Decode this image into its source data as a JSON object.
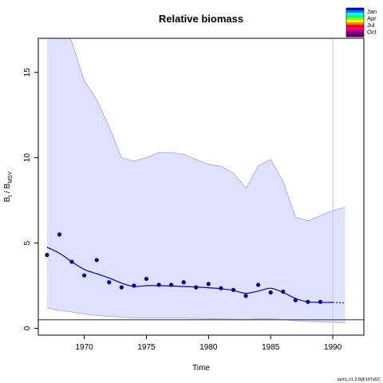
{
  "chart_data": {
    "type": "line",
    "title": "Relative biomass",
    "xlabel": "Time",
    "ylabel": {
      "base": "B",
      "sub_t": "t",
      "slash": " / ",
      "base2": "B",
      "sub_msy": "MSY"
    },
    "xlim": [
      1966.3,
      1992.5
    ],
    "ylim": [
      -0.4,
      17.0
    ],
    "x_ticks": [
      1970,
      1975,
      1980,
      1985,
      1990
    ],
    "y_ticks": [
      0,
      5,
      10,
      15
    ],
    "grid": false,
    "reference_line_y": 0.5,
    "vertical_line_x": 1990,
    "observations": {
      "x": [
        1967,
        1968,
        1969,
        1970,
        1971,
        1972,
        1973,
        1974,
        1975,
        1976,
        1977,
        1978,
        1979,
        1980,
        1981,
        1982,
        1983,
        1984,
        1985,
        1986,
        1987,
        1988,
        1989
      ],
      "y": [
        4.3,
        5.5,
        3.9,
        3.1,
        4.0,
        2.7,
        2.4,
        2.5,
        2.9,
        2.55,
        2.55,
        2.7,
        2.4,
        2.6,
        2.35,
        2.25,
        1.9,
        2.55,
        2.1,
        2.15,
        1.65,
        1.55,
        1.55
      ]
    },
    "estimate": {
      "x": [
        1967,
        1968,
        1969,
        1970,
        1971,
        1972,
        1973,
        1974,
        1975,
        1976,
        1977,
        1978,
        1979,
        1980,
        1981,
        1982,
        1983,
        1984,
        1985,
        1986,
        1987,
        1988,
        1989,
        1990
      ],
      "y": [
        4.75,
        4.4,
        3.9,
        3.45,
        3.2,
        2.95,
        2.65,
        2.45,
        2.5,
        2.5,
        2.48,
        2.45,
        2.42,
        2.38,
        2.32,
        2.22,
        2.05,
        2.18,
        2.35,
        2.1,
        1.75,
        1.55,
        1.52,
        1.52
      ]
    },
    "forecast": {
      "x": [
        1990,
        1991
      ],
      "y": [
        1.52,
        1.48
      ]
    },
    "confidence_band": {
      "x": [
        1967,
        1968,
        1969,
        1970,
        1971,
        1972,
        1973,
        1974,
        1975,
        1976,
        1977,
        1978,
        1979,
        1980,
        1981,
        1982,
        1983,
        1984,
        1985,
        1986,
        1987,
        1988,
        1989,
        1990,
        1991
      ],
      "upper": [
        18.0,
        18.0,
        16.8,
        14.5,
        13.4,
        11.8,
        10.0,
        9.8,
        10.0,
        10.3,
        10.3,
        10.2,
        9.9,
        9.6,
        9.5,
        9.1,
        8.2,
        9.5,
        9.9,
        8.6,
        6.5,
        6.3,
        6.6,
        6.9,
        7.1
      ],
      "lower": [
        1.2,
        1.05,
        0.95,
        0.85,
        0.75,
        0.7,
        0.65,
        0.6,
        0.6,
        0.6,
        0.6,
        0.6,
        0.58,
        0.56,
        0.55,
        0.53,
        0.52,
        0.55,
        0.57,
        0.5,
        0.45,
        0.4,
        0.38,
        0.35,
        0.32
      ]
    },
    "colors": {
      "band": "#e0e0ff",
      "band_edge": "#a0a0ff",
      "line": "#0000cc",
      "points": "#0000a8",
      "reference": "#555555",
      "vline": "#c8c8c8"
    },
    "legend": {
      "placement": "top-right",
      "labels": [
        "Jan",
        "Apr",
        "Jul",
        "Oct"
      ],
      "colors": [
        "#0000ff",
        "#0080ff",
        "#00ffff",
        "#00ff80",
        "#80ff00",
        "#ffff00",
        "#ff8000",
        "#ff0000",
        "#ff0080",
        "#c00080",
        "#800080",
        "#600060"
      ]
    },
    "footer": "spict_v1.3.8@107a52"
  }
}
